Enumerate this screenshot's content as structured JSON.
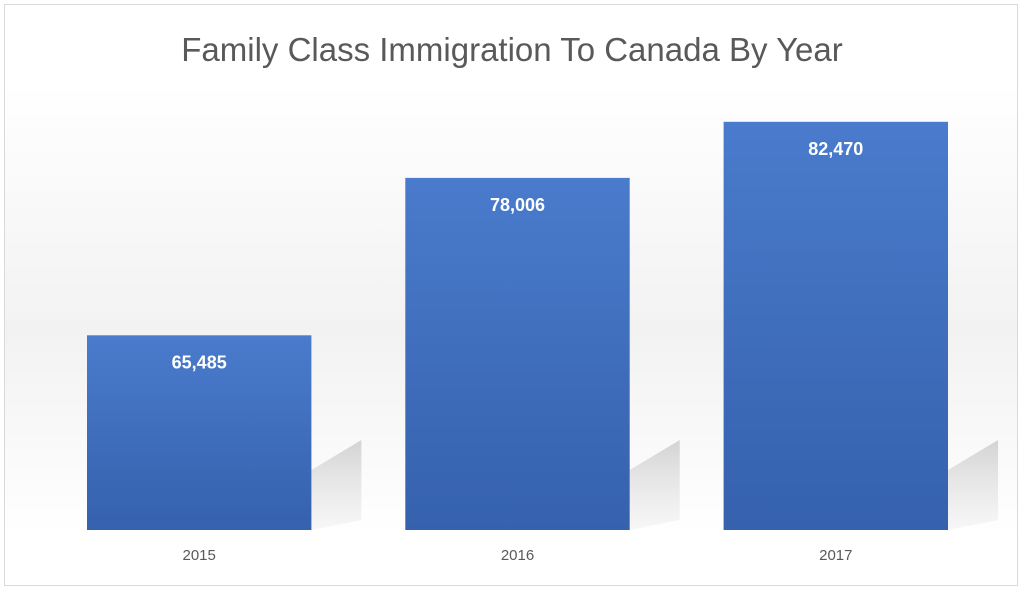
{
  "chart_data": {
    "type": "bar",
    "title": "Family Class Immigration To Canada By Year",
    "categories": [
      "2015",
      "2016",
      "2017"
    ],
    "values": [
      65485,
      78006,
      82470
    ],
    "value_labels": [
      "65,485",
      "78,006",
      "82,470"
    ],
    "xlabel": "",
    "ylabel": "",
    "grid": false,
    "legend": "none",
    "bar_color": "#4472c4",
    "ylim": [
      50000,
      85000
    ]
  }
}
